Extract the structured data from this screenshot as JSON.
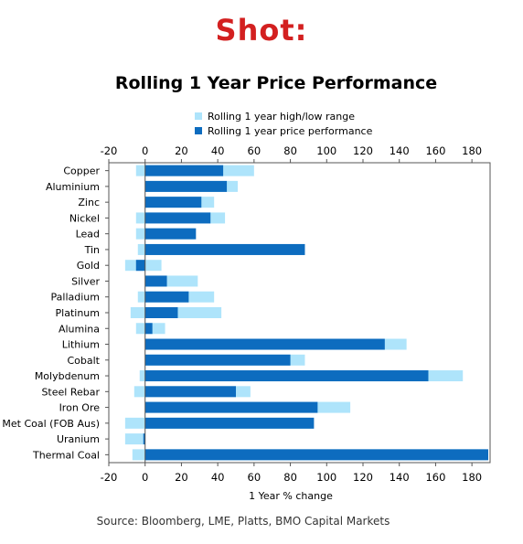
{
  "header": {
    "shot_label": "Shot:"
  },
  "source": "Source: Bloomberg, LME, Platts, BMO Capital Markets",
  "colors": {
    "range": "#aee4fb",
    "performance": "#0d6cbf",
    "axis": "#555555"
  },
  "chart_data": {
    "type": "bar",
    "orientation": "horizontal",
    "title": "Rolling 1 Year Price Performance",
    "xlabel": "1 Year % change",
    "ylabel": "",
    "xlim": [
      -20,
      190
    ],
    "xticks": [
      -20,
      0,
      20,
      40,
      60,
      80,
      100,
      120,
      140,
      160,
      180
    ],
    "grid": false,
    "legend_position": "top-center",
    "categories": [
      "Copper",
      "Aluminium",
      "Zinc",
      "Nickel",
      "Lead",
      "Tin",
      "Gold",
      "Silver",
      "Palladium",
      "Platinum",
      "Alumina",
      "Lithium",
      "Cobalt",
      "Molybdenum",
      "Steel Rebar",
      "Iron Ore",
      "Met Coal (FOB Aus)",
      "Uranium",
      "Thermal Coal"
    ],
    "series": [
      {
        "name": "Rolling 1 year high/low range",
        "low": [
          -5,
          0,
          0,
          -5,
          -5,
          -4,
          -11,
          0,
          -4,
          -8,
          -5,
          0,
          0,
          -3,
          -6,
          0,
          -11,
          -11,
          -7
        ],
        "high": [
          60,
          51,
          38,
          44,
          27,
          88,
          9,
          29,
          38,
          42,
          11,
          144,
          88,
          175,
          58,
          113,
          91,
          -1,
          188
        ]
      },
      {
        "name": "Rolling 1 year price performance",
        "values": [
          43,
          45,
          31,
          36,
          28,
          88,
          -5,
          12,
          24,
          18,
          4,
          132,
          80,
          156,
          50,
          95,
          93,
          -1,
          189
        ]
      }
    ]
  }
}
